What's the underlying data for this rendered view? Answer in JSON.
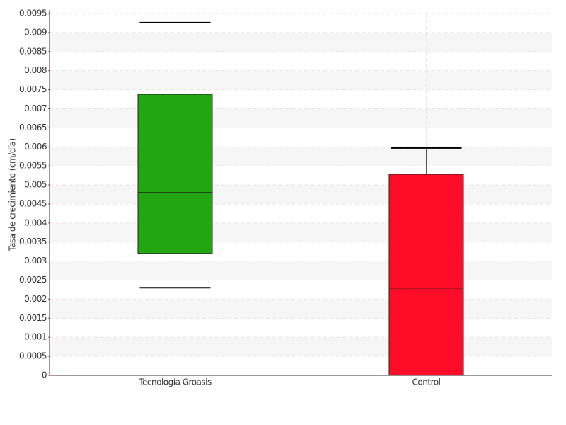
{
  "chart_data": {
    "type": "box",
    "y_label": "Tasa de crecimiento (cm/día)",
    "categories": [
      "Tecnología Groasis",
      "Control"
    ],
    "colors": [
      "#22a612",
      "#ff0c28"
    ],
    "boxes": [
      {
        "whislo": 0.0023,
        "q1": 0.0032,
        "med": 0.0048,
        "q3": 0.00738,
        "whishi": 0.00926
      },
      {
        "whislo": 0,
        "q1": 0,
        "med": 0.00229,
        "q3": 0.00528,
        "whishi": 0.00597
      }
    ],
    "ylim": [
      0,
      0.0095
    ],
    "yticks": [
      0,
      0.0005,
      0.001,
      0.0015,
      0.002,
      0.0025,
      0.003,
      0.0035,
      0.004,
      0.0045,
      0.005,
      0.0055,
      0.006,
      0.0065,
      0.007,
      0.0075,
      0.008,
      0.0085,
      0.009,
      0.0095
    ],
    "grid": true
  }
}
